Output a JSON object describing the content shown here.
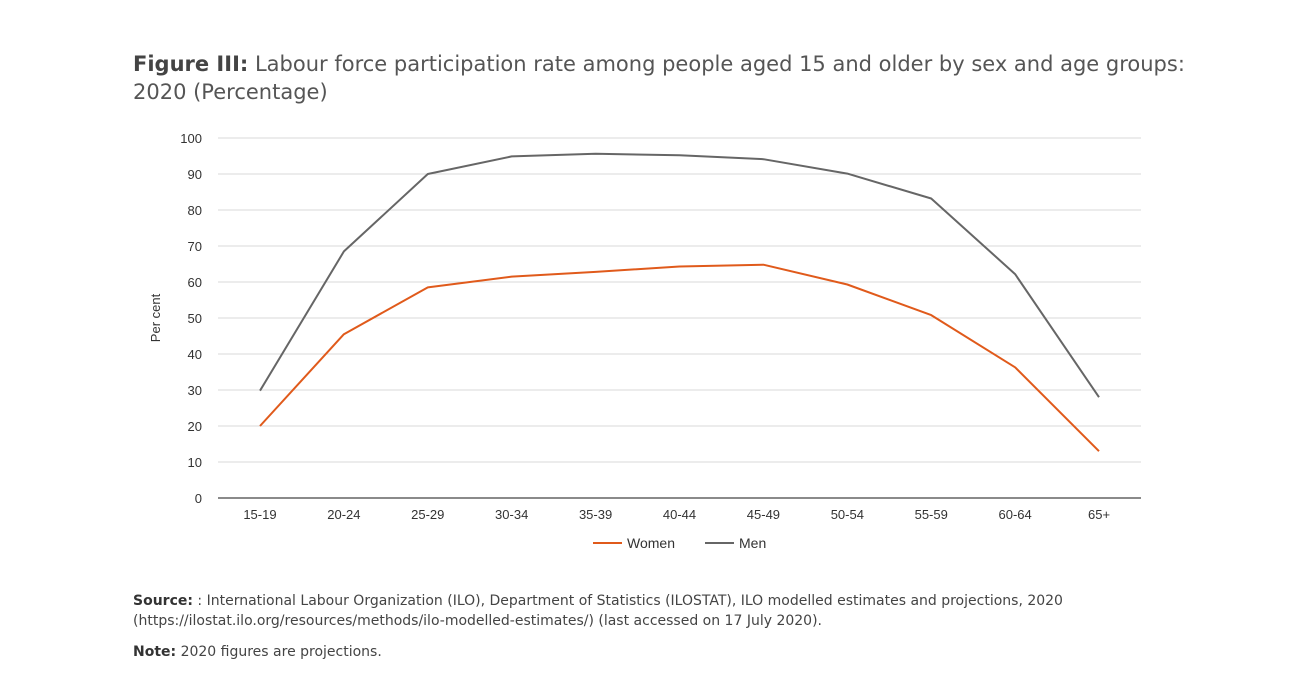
{
  "figure": {
    "label": "Figure III:",
    "title": "Labour force participation rate among people aged 15 and older by sex and age groups: 2020 (Percentage)"
  },
  "chart_data": {
    "type": "line",
    "categories": [
      "15-19",
      "20-24",
      "25-29",
      "30-34",
      "35-39",
      "40-44",
      "45-49",
      "50-54",
      "55-59",
      "60-64",
      "65+"
    ],
    "series": [
      {
        "name": "Women",
        "color": "#e05a1b",
        "values": [
          20,
          45.5,
          58.5,
          61.5,
          62.8,
          64.3,
          64.8,
          59.3,
          50.8,
          36.3,
          13
        ]
      },
      {
        "name": "Men",
        "color": "#666666",
        "values": [
          29.8,
          68.5,
          90,
          94.9,
          95.6,
          95.2,
          94.1,
          90.1,
          83.2,
          62.2,
          28
        ]
      }
    ],
    "ylabel": "Per cent",
    "xlabel": "",
    "ylim": [
      0,
      100
    ],
    "yticks": [
      0,
      10,
      20,
      30,
      40,
      50,
      60,
      70,
      80,
      90,
      100
    ],
    "grid": true,
    "legend_position": "bottom"
  },
  "source": {
    "label": "Source:",
    "text": ": International Labour Organization (ILO), Department of Statistics (ILOSTAT), ILO modelled estimates and projections, 2020 (https://ilostat.ilo.org/resources/methods/ilo-modelled-estimates/) (last accessed on 17 July 2020)."
  },
  "note": {
    "label": "Note:",
    "text": "2020 figures are projections."
  }
}
